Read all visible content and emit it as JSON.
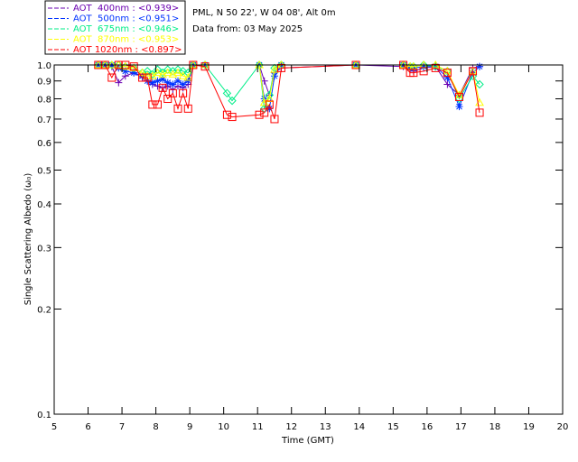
{
  "header": {
    "site": "PML, N 50 22', W 04 08', Alt 0m",
    "date": "Data from: 03 May 2025"
  },
  "chart_data": {
    "type": "line",
    "title": "",
    "xlabel": "Time (GMT)",
    "ylabel": "Single Scattering Albedo (ω₀)",
    "xlim": [
      5,
      20
    ],
    "ylim": [
      0.1,
      1.0
    ],
    "yscale": "log",
    "xticks": [
      "5",
      "6",
      "7",
      "8",
      "9",
      "10",
      "11",
      "12",
      "13",
      "14",
      "15",
      "16",
      "17",
      "18",
      "19",
      "20"
    ],
    "yticks": [
      "0.1",
      "0.2",
      "0.3",
      "0.4",
      "0.5",
      "0.6",
      "0.7",
      "0.8",
      "0.9",
      "1.0"
    ],
    "legend_position": "top-left-outside",
    "x": [
      6.3,
      6.5,
      6.7,
      6.9,
      7.1,
      7.35,
      7.6,
      7.75,
      7.9,
      8.05,
      8.2,
      8.35,
      8.5,
      8.65,
      8.8,
      8.95,
      9.1,
      9.45,
      10.1,
      10.25,
      11.05,
      11.2,
      11.35,
      11.5,
      11.7,
      13.9,
      15.3,
      15.5,
      15.6,
      15.9,
      16.25,
      16.6,
      16.95,
      17.35,
      17.55
    ],
    "series": [
      {
        "name": "AOT  400nm : <0.939>",
        "color": "#6a00b0",
        "marker": "plus",
        "values": [
          1,
          1,
          0.99,
          0.89,
          0.93,
          0.95,
          0.92,
          0.9,
          0.88,
          0.87,
          0.86,
          0.87,
          0.85,
          0.87,
          0.86,
          0.88,
          1,
          1,
          null,
          null,
          1,
          0.9,
          0.82,
          0.95,
          0.98,
          1,
          0.99,
          0.97,
          0.96,
          0.98,
          0.99,
          0.88,
          0.82,
          0.98,
          0.99
        ]
      },
      {
        "name": "AOT  500nm : <0.951>",
        "color": "#0033ff",
        "marker": "asterisk",
        "values": [
          1,
          1,
          1,
          0.98,
          0.96,
          0.95,
          0.93,
          0.9,
          0.89,
          0.9,
          0.91,
          0.89,
          0.88,
          0.9,
          0.88,
          0.9,
          1,
          1,
          null,
          null,
          1,
          0.8,
          0.75,
          0.93,
          1,
          1,
          1,
          0.98,
          0.98,
          0.99,
          0.99,
          0.92,
          0.76,
          0.95,
          0.99
        ]
      },
      {
        "name": "AOT  675nm : <0.946>",
        "color": "#00ee88",
        "marker": "diamond",
        "values": [
          1,
          1,
          1,
          1,
          0.99,
          0.98,
          0.95,
          0.96,
          0.94,
          0.97,
          0.95,
          0.97,
          0.96,
          0.97,
          0.96,
          0.95,
          1,
          1,
          0.83,
          0.79,
          1,
          0.75,
          0.82,
          0.98,
          1,
          1,
          1,
          0.99,
          0.99,
          1,
          0.99,
          0.96,
          0.8,
          0.93,
          0.88
        ]
      },
      {
        "name": "AOT  870nm : <0.953>",
        "color": "#ffff00",
        "marker": "triangle",
        "values": [
          1,
          1,
          1,
          1,
          0.99,
          0.98,
          0.95,
          0.93,
          0.93,
          0.95,
          0.94,
          0.95,
          0.94,
          0.95,
          0.93,
          0.92,
          1,
          1,
          null,
          null,
          1,
          0.78,
          0.8,
          0.97,
          1,
          1,
          1,
          0.99,
          0.99,
          1,
          1,
          0.96,
          0.82,
          0.96,
          0.78
        ]
      },
      {
        "name": "AOT 1020nm : <0.897>",
        "color": "#ff0000",
        "marker": "square",
        "values": [
          1,
          1,
          0.92,
          1,
          1,
          0.99,
          0.92,
          0.92,
          0.77,
          0.77,
          0.86,
          0.8,
          0.83,
          0.75,
          0.83,
          0.75,
          1,
          0.99,
          0.72,
          0.71,
          0.72,
          0.73,
          0.77,
          0.7,
          0.98,
          1,
          1,
          0.95,
          0.95,
          0.96,
          0.98,
          0.95,
          0.81,
          0.96,
          0.73
        ]
      }
    ]
  }
}
